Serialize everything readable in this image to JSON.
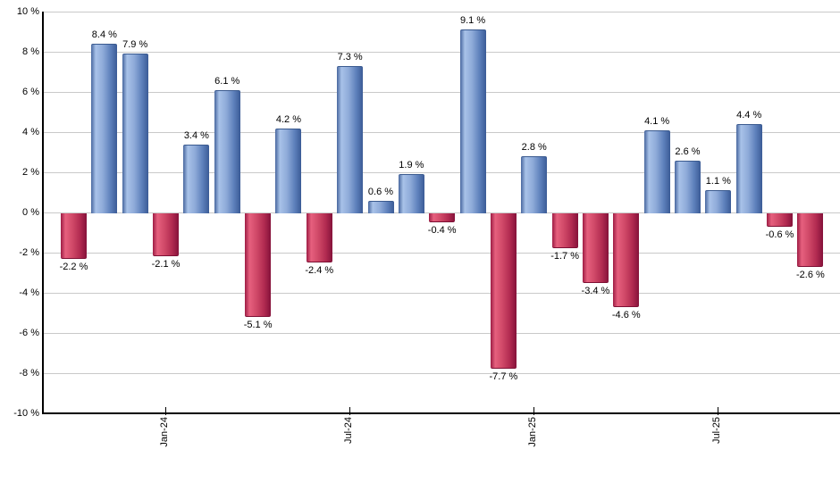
{
  "chart_data": {
    "type": "bar",
    "title": "",
    "xlabel": "",
    "ylabel": "",
    "values": [
      -2.2,
      8.4,
      7.9,
      -2.1,
      3.4,
      6.1,
      -5.1,
      4.2,
      -2.4,
      7.3,
      0.6,
      1.9,
      -0.4,
      9.1,
      -7.7,
      2.8,
      -1.7,
      -3.4,
      -4.6,
      4.1,
      2.6,
      1.1,
      4.4,
      -0.6,
      -2.6
    ],
    "value_label_suffix": " %",
    "x_ticks": [
      {
        "label": "Jan-24",
        "bar_index": 3
      },
      {
        "label": "Jul-24",
        "bar_index": 9
      },
      {
        "label": "Jan-25",
        "bar_index": 15
      },
      {
        "label": "Jul-25",
        "bar_index": 21
      }
    ],
    "y_ticks": [
      {
        "label": "10 %",
        "value": 10
      },
      {
        "label": "8 %",
        "value": 8
      },
      {
        "label": "6 %",
        "value": 6
      },
      {
        "label": "4 %",
        "value": 4
      },
      {
        "label": "2 %",
        "value": 2
      },
      {
        "label": "0 %",
        "value": 0
      },
      {
        "label": "-2 %",
        "value": -2
      },
      {
        "label": "-4 %",
        "value": -4
      },
      {
        "label": "-6 %",
        "value": -6
      },
      {
        "label": "-8 %",
        "value": -8
      },
      {
        "label": "-10 %",
        "value": -10
      }
    ],
    "ylim": [
      -10,
      10
    ],
    "grid": true,
    "legend_position": "none",
    "colors": {
      "positive_bar": "#7c9bd0",
      "positive_bar_gradient": [
        "#48679f",
        "#a8c2e8",
        "#8fabd9",
        "#5d80bb",
        "#3b5b96"
      ],
      "negative_bar": "#c8456a",
      "negative_bar_gradient": [
        "#9e1c44",
        "#e6607e",
        "#d04968",
        "#b12a50",
        "#85123a"
      ],
      "grid_color": "#c9c9c9",
      "axis_color": "#000000",
      "label_color": "#000000",
      "background": "#ffffff"
    }
  }
}
